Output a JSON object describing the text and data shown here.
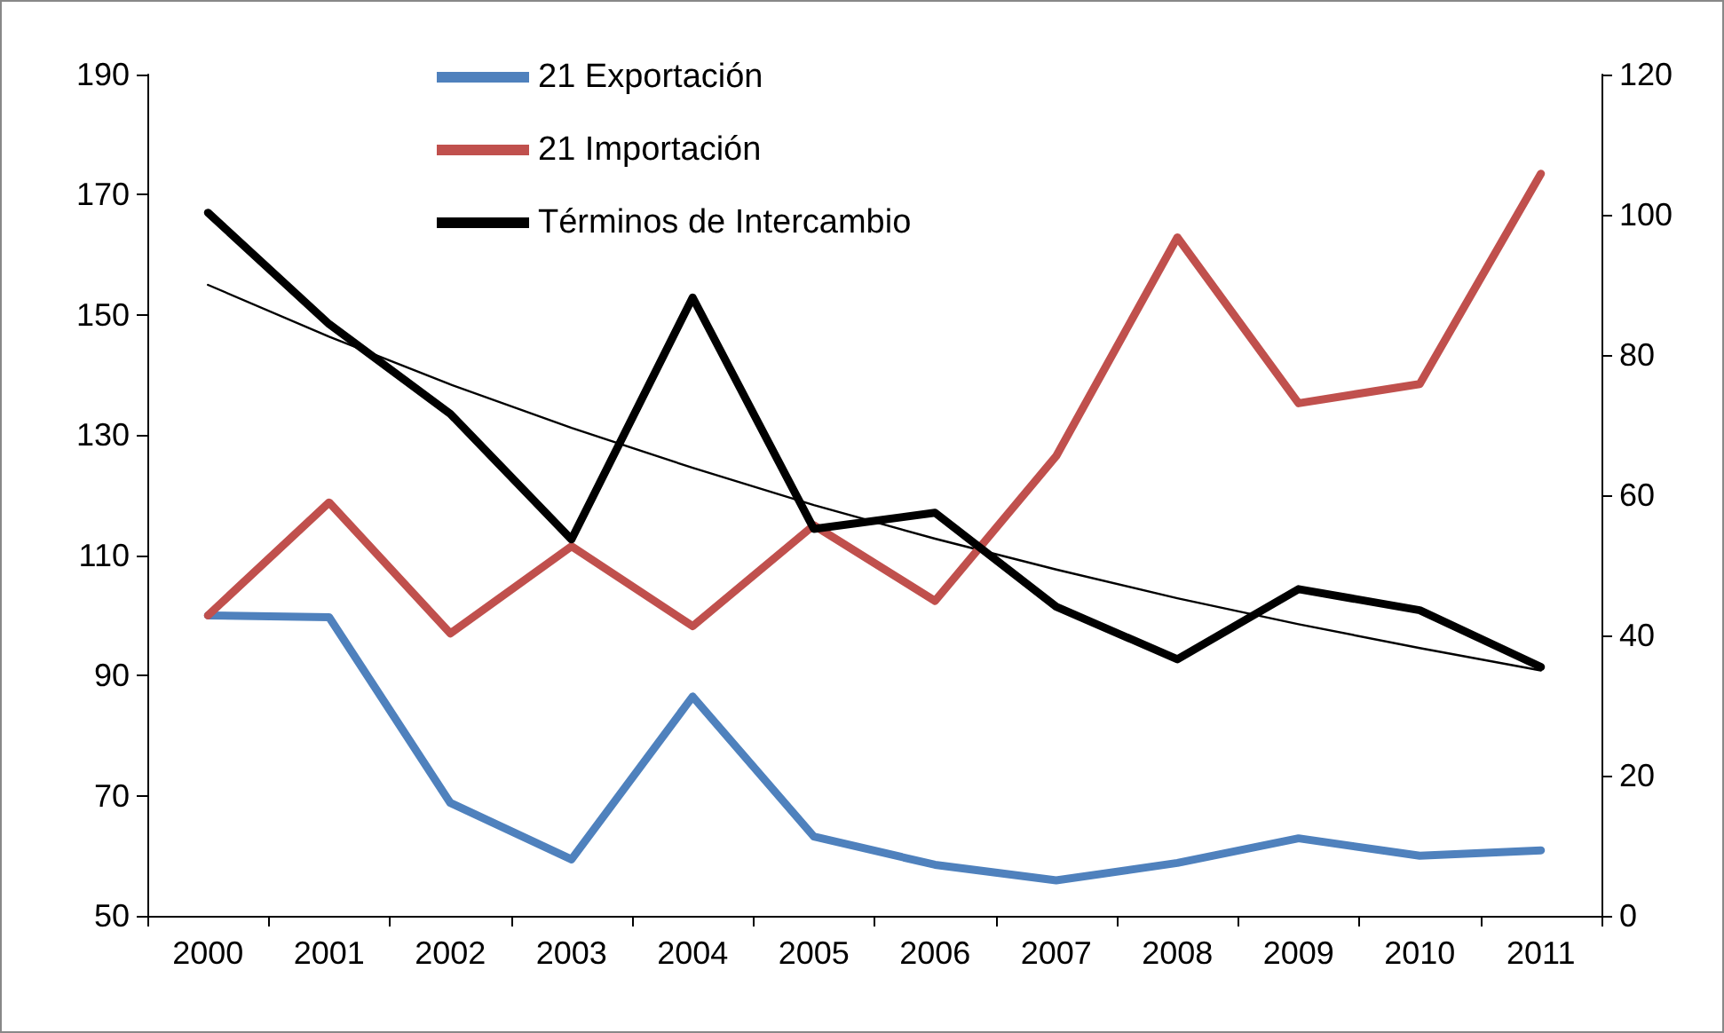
{
  "chart_data": {
    "type": "line",
    "categories": [
      "2000",
      "2001",
      "2002",
      "2003",
      "2004",
      "2005",
      "2006",
      "2007",
      "2008",
      "2009",
      "2010",
      "2011"
    ],
    "series": [
      {
        "name": "21 Exportación",
        "color": "#4f81bd",
        "values": [
          100,
          99.7,
          68.8,
          59.4,
          86.5,
          63.2,
          58.5,
          55.9,
          58.8,
          62.9,
          60,
          60.9
        ]
      },
      {
        "name": "21 Importación",
        "color": "#c0504d",
        "values": [
          100,
          118.8,
          97,
          111.5,
          98.2,
          115,
          102.4,
          126.5,
          162.9,
          135.3,
          138.5,
          173.5
        ]
      },
      {
        "name": "Términos de Intercambio",
        "color": "#000000",
        "axis": "y2",
        "values": [
          100.3,
          84.4,
          71.6,
          53.7,
          88.2,
          55.2,
          57.5,
          44.1,
          36.6,
          46.6,
          43.6,
          35.5
        ]
      },
      {
        "color": "#000000",
        "axis": "y2",
        "type": "line",
        "values": [
          90,
          82.6,
          75.8,
          69.6,
          63.9,
          58.6,
          53.8,
          49.4,
          45.3,
          41.6,
          38.2,
          35
        ]
      }
    ],
    "ylim": [
      50,
      190
    ],
    "yticks": [
      50,
      70,
      90,
      110,
      130,
      150,
      170,
      190
    ],
    "y2lim": [
      0,
      120
    ],
    "y2ticks": [
      0,
      20,
      40,
      60,
      80,
      100,
      120
    ],
    "legend": "top",
    "marker": "none"
  }
}
